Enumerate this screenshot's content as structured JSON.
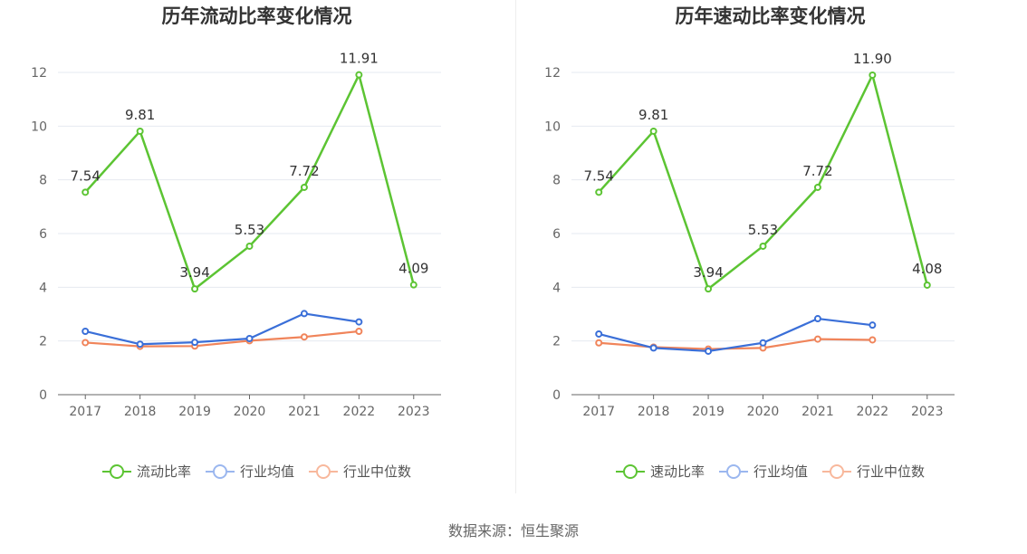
{
  "source_note": "数据来源：恒生聚源",
  "colors": {
    "primary": "#5cc433",
    "industry_avg": "#3a6fd8",
    "industry_median": "#f0845a",
    "axis": "#666666",
    "grid": "#e6e9f0"
  },
  "chart_data": [
    {
      "type": "line",
      "title": "历年流动比率变化情况",
      "categories": [
        "2017",
        "2018",
        "2019",
        "2020",
        "2021",
        "2022",
        "2023"
      ],
      "ylim": [
        0,
        12
      ],
      "yticks": [
        "0",
        "2",
        "4",
        "6",
        "8",
        "10",
        "12"
      ],
      "grid": true,
      "legend_position": "bottom",
      "series": [
        {
          "name": "流动比率",
          "color": "#5cc433",
          "values": [
            7.54,
            9.81,
            3.94,
            5.53,
            7.72,
            11.91,
            4.09
          ],
          "labels": [
            "7.54",
            "9.81",
            "3.94",
            "5.53",
            "7.72",
            "11.91",
            "4.09"
          ]
        },
        {
          "name": "行业均值",
          "color": "#3a6fd8",
          "values": [
            2.36,
            1.88,
            1.95,
            2.09,
            3.02,
            2.71,
            null
          ]
        },
        {
          "name": "行业中位数",
          "color": "#f0845a",
          "values": [
            1.94,
            1.8,
            1.81,
            2.01,
            2.15,
            2.36,
            null
          ]
        }
      ]
    },
    {
      "type": "line",
      "title": "历年速动比率变化情况",
      "categories": [
        "2017",
        "2018",
        "2019",
        "2020",
        "2021",
        "2022",
        "2023"
      ],
      "ylim": [
        0,
        12
      ],
      "yticks": [
        "0",
        "2",
        "4",
        "6",
        "8",
        "10",
        "12"
      ],
      "grid": true,
      "legend_position": "bottom",
      "series": [
        {
          "name": "速动比率",
          "color": "#5cc433",
          "values": [
            7.54,
            9.81,
            3.94,
            5.53,
            7.72,
            11.9,
            4.08
          ],
          "labels": [
            "7.54",
            "9.81",
            "3.94",
            "5.53",
            "7.72",
            "11.90",
            "4.08"
          ]
        },
        {
          "name": "行业均值",
          "color": "#3a6fd8",
          "values": [
            2.26,
            1.74,
            1.62,
            1.93,
            2.83,
            2.59,
            null
          ]
        },
        {
          "name": "行业中位数",
          "color": "#f0845a",
          "values": [
            1.93,
            1.77,
            1.7,
            1.74,
            2.07,
            2.04,
            null
          ]
        }
      ]
    }
  ]
}
